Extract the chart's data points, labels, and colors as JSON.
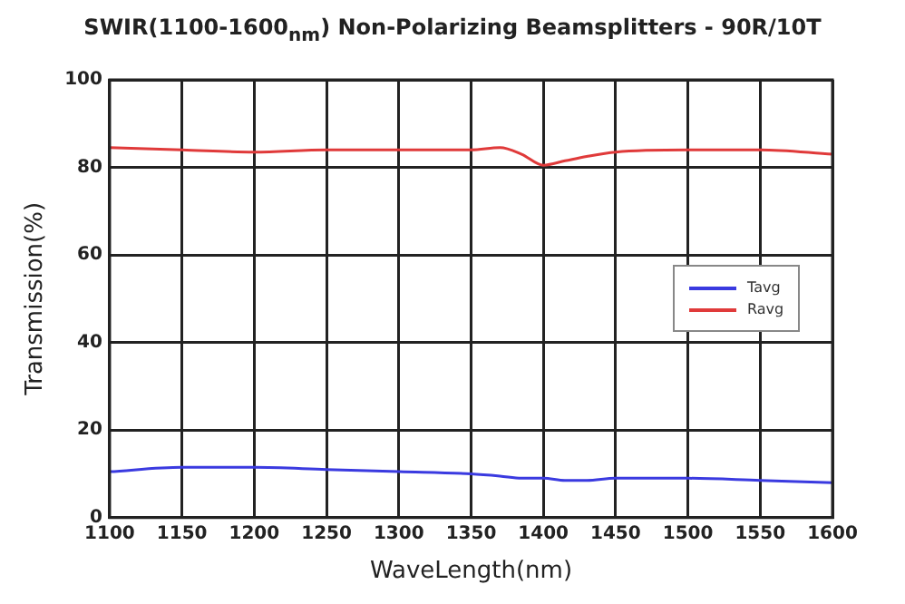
{
  "chart_data": {
    "type": "line",
    "title": "SWIR(1100-1600$_{nm}$)  Non-Polarizing Beamsplitters - 90R/10T",
    "xlabel": "WaveLength(nm)",
    "ylabel": "Transmission(%)",
    "x": [
      1100,
      1150,
      1200,
      1250,
      1300,
      1350,
      1370,
      1385,
      1400,
      1415,
      1430,
      1450,
      1500,
      1550,
      1600
    ],
    "series": [
      {
        "name": "Tavg",
        "color": "#3a3ae0",
        "values": [
          10.5,
          11.5,
          11.5,
          11,
          10.5,
          10,
          9.5,
          9,
          9,
          8.5,
          8.5,
          9,
          9,
          8.5,
          8
        ]
      },
      {
        "name": "Ravg",
        "color": "#e03a3a",
        "values": [
          84.5,
          84,
          83.5,
          84,
          84,
          84,
          84.5,
          83,
          80.5,
          81.5,
          82.5,
          83.5,
          84,
          84,
          83
        ]
      }
    ],
    "xlim": [
      1100,
      1600
    ],
    "xticks": [
      1100,
      1150,
      1200,
      1250,
      1300,
      1350,
      1400,
      1450,
      1500,
      1550,
      1600
    ],
    "ylim": [
      0,
      100
    ],
    "yticks": [
      0,
      20,
      40,
      60,
      80,
      100
    ],
    "grid": true,
    "legend": "right",
    "marker": "none",
    "line_style": "solid"
  }
}
